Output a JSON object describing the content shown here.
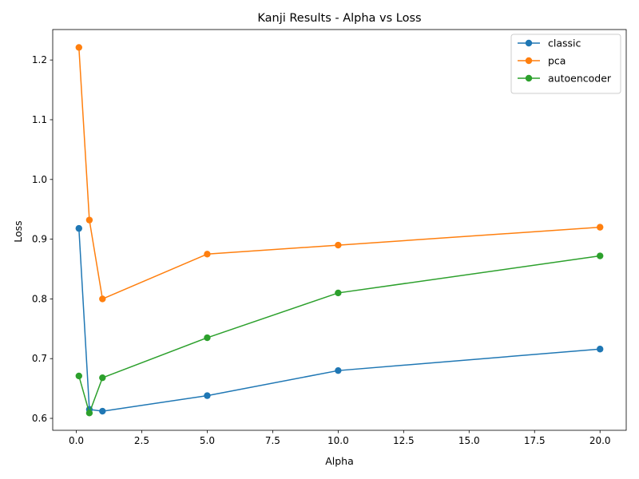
{
  "chart_data": {
    "type": "line",
    "title": "Kanji Results - Alpha vs Loss",
    "xlabel": "Alpha",
    "ylabel": "Loss",
    "xlim": [
      -0.9,
      21.0
    ],
    "ylim": [
      0.58,
      1.251
    ],
    "xticks": [
      0.0,
      2.5,
      5.0,
      7.5,
      10.0,
      12.5,
      15.0,
      17.5,
      20.0
    ],
    "xtick_labels": [
      "0.0",
      "2.5",
      "5.0",
      "7.5",
      "10.0",
      "12.5",
      "15.0",
      "17.5",
      "20.0"
    ],
    "yticks": [
      0.6,
      0.7,
      0.8,
      0.9,
      1.0,
      1.1,
      1.2
    ],
    "ytick_labels": [
      "0.6",
      "0.7",
      "0.8",
      "0.9",
      "1.0",
      "1.1",
      "1.2"
    ],
    "grid": false,
    "legend_position": "top-right",
    "x": [
      0.1,
      0.5,
      1.0,
      5.0,
      10.0,
      20.0
    ],
    "series": [
      {
        "name": "classic",
        "color": "#1f77b4",
        "values": [
          0.918,
          0.615,
          0.612,
          0.638,
          0.68,
          0.716
        ]
      },
      {
        "name": "pca",
        "color": "#ff7f0e",
        "values": [
          1.221,
          0.932,
          0.8,
          0.875,
          0.89,
          0.92
        ]
      },
      {
        "name": "autoencoder",
        "color": "#2ca02c",
        "values": [
          0.671,
          0.609,
          0.668,
          0.735,
          0.81,
          0.872
        ]
      }
    ]
  }
}
